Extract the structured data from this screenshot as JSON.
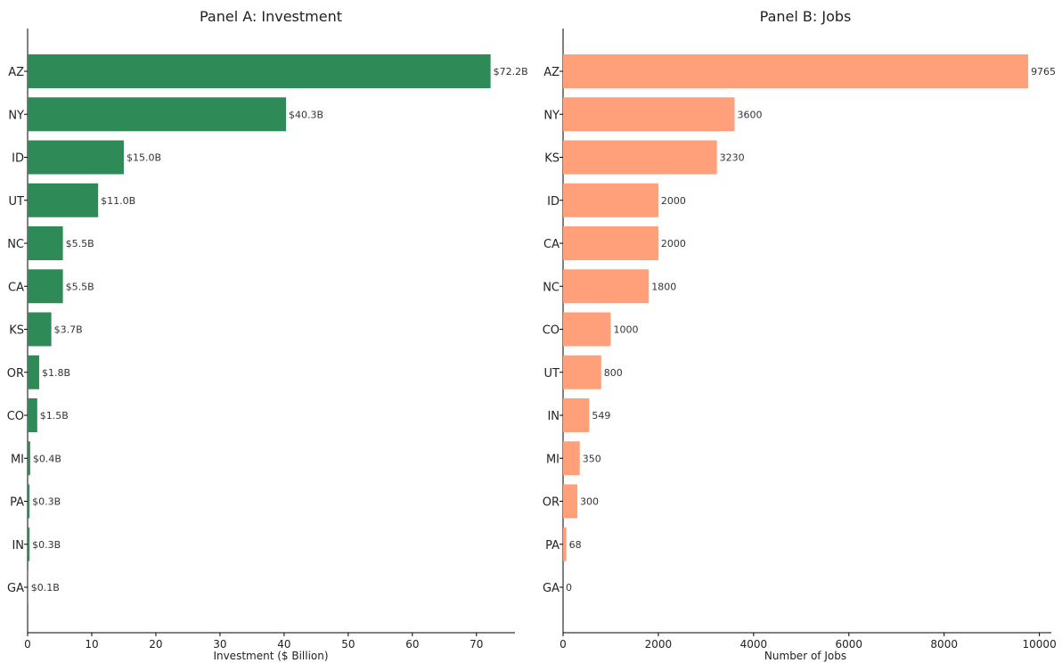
{
  "chart_data": [
    {
      "type": "bar",
      "orientation": "horizontal",
      "title": "Panel A: Investment",
      "xlabel": "Investment ($ Billion)",
      "ylabel": "",
      "xlim": [
        0,
        76
      ],
      "xticks": [
        0,
        10,
        20,
        30,
        40,
        50,
        60,
        70
      ],
      "color": "#2e8b57",
      "categories": [
        "AZ",
        "NY",
        "ID",
        "UT",
        "NC",
        "CA",
        "KS",
        "OR",
        "CO",
        "MI",
        "PA",
        "IN",
        "GA"
      ],
      "values": [
        72.2,
        40.3,
        15.0,
        11.0,
        5.5,
        5.5,
        3.7,
        1.8,
        1.5,
        0.4,
        0.3,
        0.3,
        0.1
      ],
      "labels": [
        "$72.2B",
        "$40.3B",
        "$15.0B",
        "$11.0B",
        "$5.5B",
        "$5.5B",
        "$3.7B",
        "$1.8B",
        "$1.5B",
        "$0.4B",
        "$0.3B",
        "$0.3B",
        "$0.1B"
      ],
      "grid": false
    },
    {
      "type": "bar",
      "orientation": "horizontal",
      "title": "Panel B: Jobs",
      "xlabel": "Number of Jobs",
      "ylabel": "",
      "xlim": [
        0,
        10250
      ],
      "xticks": [
        0,
        2000,
        4000,
        6000,
        8000,
        10000
      ],
      "color": "#ffa07a",
      "categories": [
        "AZ",
        "NY",
        "KS",
        "ID",
        "CA",
        "NC",
        "CO",
        "UT",
        "IN",
        "MI",
        "OR",
        "PA",
        "GA"
      ],
      "values": [
        9765,
        3600,
        3230,
        2000,
        2000,
        1800,
        1000,
        800,
        549,
        350,
        300,
        68,
        0
      ],
      "labels": [
        "9765",
        "3600",
        "3230",
        "2000",
        "2000",
        "1800",
        "1000",
        "800",
        "549",
        "350",
        "300",
        "68",
        "0"
      ],
      "grid": false
    }
  ]
}
